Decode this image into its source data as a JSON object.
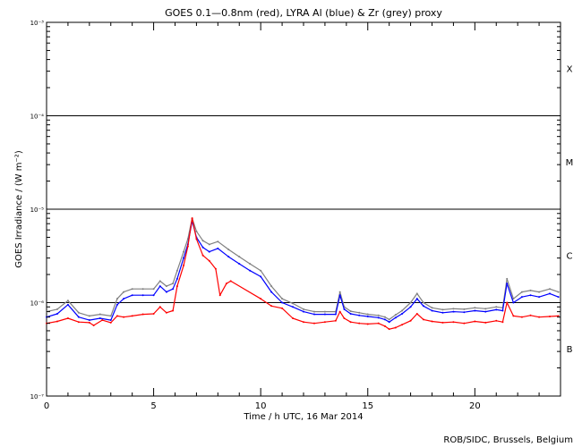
{
  "chart_data": {
    "type": "line",
    "title": "GOES 0.1—0.8nm (red), LYRA Al (blue) & Zr (grey) proxy",
    "xlabel": "Time / h UTC, 16 Mar 2014",
    "ylabel": "GOES Irradiance / (W m⁻²)",
    "xlim": [
      0,
      24
    ],
    "ylim": [
      1e-07,
      0.001
    ],
    "yscale": "log",
    "x_ticks": [
      0,
      5,
      10,
      15,
      20
    ],
    "x_tick_labels": [
      "0",
      "5",
      "10",
      "15",
      "20"
    ],
    "y_tick_labels": [
      "10⁻⁷",
      "10⁻⁶",
      "10⁻⁵",
      "10⁻⁴",
      "10⁻³"
    ],
    "y_tick_values": [
      1e-07,
      1e-06,
      1e-05,
      0.0001,
      0.001
    ],
    "reference_lines": [
      1e-06,
      1e-05,
      0.0001
    ],
    "flare_classes": [
      {
        "label": "X",
        "y": 0.00032
      },
      {
        "label": "M",
        "y": 3.2e-05
      },
      {
        "label": "C",
        "y": 3.2e-06
      },
      {
        "label": "B",
        "y": 3.2e-07
      }
    ],
    "grid": false,
    "series": [
      {
        "name": "GOES 0.1—0.8nm",
        "color": "#ff0000",
        "x": [
          0.0,
          0.5,
          1.0,
          1.5,
          2.0,
          2.2,
          2.6,
          3.0,
          3.3,
          3.6,
          4.0,
          4.5,
          5.0,
          5.3,
          5.6,
          5.9,
          6.1,
          6.4,
          6.6,
          6.8,
          7.0,
          7.3,
          7.6,
          7.9,
          8.1,
          8.4,
          8.6,
          10.0,
          10.5,
          11.0,
          11.5,
          12.0,
          12.5,
          13.0,
          13.5,
          13.7,
          13.9,
          14.2,
          14.6,
          15.0,
          15.5,
          15.8,
          16.0,
          16.3,
          16.6,
          17.0,
          17.3,
          17.6,
          18.0,
          18.5,
          19.0,
          19.5,
          20.0,
          20.5,
          21.0,
          21.3,
          21.5,
          21.8,
          22.2,
          22.6,
          23.0,
          23.5,
          23.9
        ],
        "y": [
          6e-07,
          6.3e-07,
          6.8e-07,
          6.2e-07,
          6.1e-07,
          5.7e-07,
          6.5e-07,
          6.1e-07,
          7.2e-07,
          7e-07,
          7.2e-07,
          7.5e-07,
          7.6e-07,
          9e-07,
          7.8e-07,
          8.2e-07,
          1.5e-06,
          2.5e-06,
          4e-06,
          8e-06,
          4.8e-06,
          3.2e-06,
          2.8e-06,
          2.3e-06,
          1.2e-06,
          1.6e-06,
          1.7e-06,
          1.1e-06,
          9.2e-07,
          8.7e-07,
          6.8e-07,
          6.2e-07,
          6e-07,
          6.2e-07,
          6.4e-07,
          8e-07,
          6.8e-07,
          6.2e-07,
          6e-07,
          5.9e-07,
          6e-07,
          5.6e-07,
          5.2e-07,
          5.4e-07,
          5.8e-07,
          6.4e-07,
          7.6e-07,
          6.6e-07,
          6.3e-07,
          6.1e-07,
          6.2e-07,
          6e-07,
          6.3e-07,
          6.1e-07,
          6.4e-07,
          6.2e-07,
          1e-06,
          7.2e-07,
          7e-07,
          7.3e-07,
          7e-07,
          7.1e-07,
          7.2e-07
        ]
      },
      {
        "name": "LYRA Al",
        "color": "#0000ff",
        "x": [
          0.0,
          0.5,
          1.0,
          1.5,
          2.0,
          2.5,
          3.0,
          3.3,
          3.6,
          4.0,
          4.5,
          5.0,
          5.3,
          5.6,
          5.9,
          6.1,
          6.4,
          6.6,
          6.8,
          7.0,
          7.3,
          7.6,
          8.0,
          8.5,
          9.0,
          9.5,
          10.0,
          10.5,
          11.0,
          11.5,
          12.0,
          12.5,
          13.0,
          13.5,
          13.7,
          13.9,
          14.2,
          14.6,
          15.0,
          15.5,
          15.8,
          16.0,
          16.3,
          16.6,
          17.0,
          17.3,
          17.6,
          18.0,
          18.5,
          19.0,
          19.5,
          20.0,
          20.5,
          21.0,
          21.3,
          21.5,
          21.8,
          22.2,
          22.6,
          23.0,
          23.5,
          23.9
        ],
        "y": [
          7e-07,
          7.6e-07,
          9.5e-07,
          7e-07,
          6.5e-07,
          6.8e-07,
          6.5e-07,
          9.5e-07,
          1.1e-06,
          1.2e-06,
          1.2e-06,
          1.2e-06,
          1.5e-06,
          1.3e-06,
          1.4e-06,
          1.8e-06,
          3e-06,
          4.2e-06,
          7.5e-06,
          5e-06,
          3.9e-06,
          3.5e-06,
          3.8e-06,
          3.1e-06,
          2.6e-06,
          2.2e-06,
          1.9e-06,
          1.3e-06,
          1e-06,
          9e-07,
          8e-07,
          7.5e-07,
          7.5e-07,
          7.5e-07,
          1.2e-06,
          8.5e-07,
          7.6e-07,
          7.3e-07,
          7.1e-07,
          6.9e-07,
          6.6e-07,
          6.2e-07,
          6.9e-07,
          7.6e-07,
          9e-07,
          1.1e-06,
          9.2e-07,
          8.2e-07,
          7.8e-07,
          8e-07,
          7.9e-07,
          8.2e-07,
          8e-07,
          8.4e-07,
          8.2e-07,
          1.6e-06,
          1e-06,
          1.15e-06,
          1.2e-06,
          1.15e-06,
          1.25e-06,
          1.15e-06
        ]
      },
      {
        "name": "LYRA Zr",
        "color": "#808080",
        "x": [
          0.0,
          0.5,
          1.0,
          1.5,
          2.0,
          2.5,
          3.0,
          3.3,
          3.6,
          4.0,
          4.5,
          5.0,
          5.3,
          5.6,
          5.9,
          6.1,
          6.4,
          6.6,
          6.8,
          7.0,
          7.3,
          7.6,
          8.0,
          8.5,
          9.0,
          9.5,
          10.0,
          10.5,
          11.0,
          11.5,
          12.0,
          12.5,
          13.0,
          13.5,
          13.7,
          13.9,
          14.2,
          14.6,
          15.0,
          15.5,
          15.8,
          16.0,
          16.3,
          16.6,
          17.0,
          17.3,
          17.6,
          18.0,
          18.5,
          19.0,
          19.5,
          20.0,
          20.5,
          21.0,
          21.3,
          21.5,
          21.8,
          22.2,
          22.6,
          23.0,
          23.5,
          23.9
        ],
        "y": [
          8e-07,
          8.5e-07,
          1.05e-06,
          7.8e-07,
          7.2e-07,
          7.5e-07,
          7.2e-07,
          1.1e-06,
          1.3e-06,
          1.4e-06,
          1.4e-06,
          1.4e-06,
          1.7e-06,
          1.5e-06,
          1.6e-06,
          2.2e-06,
          3.5e-06,
          4.8e-06,
          8e-06,
          5.8e-06,
          4.6e-06,
          4.2e-06,
          4.5e-06,
          3.7e-06,
          3.1e-06,
          2.6e-06,
          2.2e-06,
          1.5e-06,
          1.1e-06,
          9.8e-07,
          8.5e-07,
          8e-07,
          8e-07,
          8e-07,
          1.3e-06,
          9e-07,
          8.1e-07,
          7.8e-07,
          7.5e-07,
          7.3e-07,
          7e-07,
          6.6e-07,
          7.4e-07,
          8.2e-07,
          1e-06,
          1.25e-06,
          1e-06,
          8.8e-07,
          8.4e-07,
          8.6e-07,
          8.5e-07,
          8.8e-07,
          8.6e-07,
          9e-07,
          8.8e-07,
          1.8e-06,
          1.1e-06,
          1.3e-06,
          1.35e-06,
          1.3e-06,
          1.4e-06,
          1.3e-06
        ]
      }
    ]
  },
  "credit": "ROB/SIDC, Brussels, Belgium"
}
